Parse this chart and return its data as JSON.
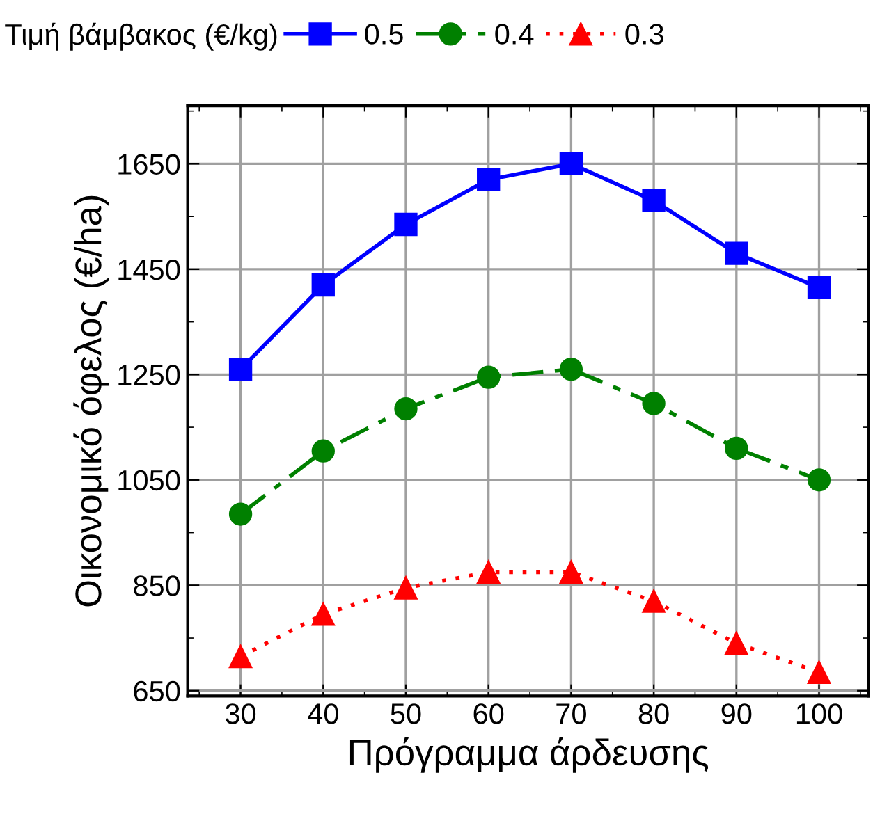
{
  "chart_data": {
    "type": "line",
    "xlabel": "Πρόγραμμα άρδευσης",
    "ylabel": "Οικονομικό όφελος (€/ha)",
    "legend_title": "Τιμή βάμβακος (€/kg)",
    "x": [
      30,
      40,
      50,
      60,
      70,
      80,
      90,
      100
    ],
    "series": [
      {
        "name": "0.5",
        "color": "#0000ff",
        "marker": "square",
        "line_style": "solid",
        "values": [
          1260,
          1420,
          1535,
          1620,
          1650,
          1580,
          1480,
          1415
        ]
      },
      {
        "name": "0.4",
        "color": "#008000",
        "marker": "circle",
        "line_style": "dashed",
        "values": [
          985,
          1105,
          1185,
          1245,
          1260,
          1195,
          1110,
          1050
        ]
      },
      {
        "name": "0.3",
        "color": "#ff0000",
        "marker": "triangle",
        "line_style": "dotted",
        "values": [
          715,
          795,
          845,
          875,
          875,
          820,
          740,
          685
        ]
      }
    ],
    "xlim": [
      23.6,
      106
    ],
    "ylim": [
      640,
      1760
    ],
    "xticks": [
      30,
      40,
      50,
      60,
      70,
      80,
      90,
      100
    ],
    "yticks": [
      650,
      850,
      1050,
      1250,
      1450,
      1650
    ],
    "grid": true,
    "legend": "top"
  }
}
